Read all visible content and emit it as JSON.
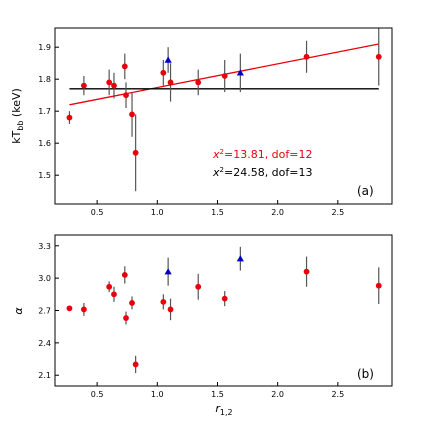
{
  "chart_data": [
    {
      "panel": "(a)",
      "type": "scatter",
      "ylabel": "kT_bb (keV)",
      "xlim": [
        0.15,
        2.95
      ],
      "ylim": [
        1.41,
        1.96
      ],
      "x_ticks": [
        0.5,
        1.0,
        1.5,
        2.0,
        2.5
      ],
      "y_ticks": [
        1.5,
        1.6,
        1.7,
        1.8,
        1.9
      ],
      "x_tick_labels": [
        "0.5",
        "1.0",
        "1.5",
        "2.0",
        "2.5"
      ],
      "y_tick_labels": [
        "1.5",
        "1.6",
        "1.7",
        "1.8",
        "1.9"
      ],
      "series": [
        {
          "marker": "circle",
          "color": "#e8000b",
          "points": [
            {
              "x": 0.27,
              "y": 1.68,
              "yerr": 0.02
            },
            {
              "x": 0.39,
              "y": 1.78,
              "yerr": 0.03
            },
            {
              "x": 0.6,
              "y": 1.79,
              "yerr": 0.04
            },
            {
              "x": 0.64,
              "y": 1.78,
              "yerr": 0.04
            },
            {
              "x": 0.73,
              "y": 1.84,
              "yerr": 0.04
            },
            {
              "x": 0.74,
              "y": 1.75,
              "yerr": 0.04
            },
            {
              "x": 0.79,
              "y": 1.69,
              "yerr": 0.07
            },
            {
              "x": 0.82,
              "y": 1.57,
              "yerr": 0.12
            },
            {
              "x": 1.05,
              "y": 1.82,
              "yerr": 0.04
            },
            {
              "x": 1.11,
              "y": 1.79,
              "yerr": 0.06
            },
            {
              "x": 1.34,
              "y": 1.79,
              "yerr": 0.04
            },
            {
              "x": 1.56,
              "y": 1.81,
              "yerr": 0.05
            },
            {
              "x": 2.24,
              "y": 1.87,
              "yerr": 0.05
            },
            {
              "x": 2.84,
              "y": 1.87,
              "yerr": 0.09
            }
          ]
        },
        {
          "marker": "triangle",
          "color": "#0000cc",
          "points": [
            {
              "x": 1.09,
              "y": 1.86,
              "yerr": 0.04
            },
            {
              "x": 1.69,
              "y": 1.82,
              "yerr": 0.06
            }
          ]
        }
      ],
      "lines": [
        {
          "color": "#e8000b",
          "x": [
            0.27,
            2.84
          ],
          "y": [
            1.72,
            1.91
          ]
        },
        {
          "color": "#000000",
          "x": [
            0.27,
            2.84
          ],
          "y": [
            1.77,
            1.77
          ]
        }
      ],
      "annotations": [
        {
          "text": "x²=13.81, dof=12",
          "color": "#e8000b"
        },
        {
          "text": "x²=24.58, dof=13",
          "color": "#000000"
        }
      ]
    },
    {
      "panel": "(b)",
      "type": "scatter",
      "xlabel": "r_1,2",
      "ylabel": "α",
      "xlim": [
        0.15,
        2.95
      ],
      "ylim": [
        2.0,
        3.4
      ],
      "x_ticks": [
        0.5,
        1.0,
        1.5,
        2.0,
        2.5
      ],
      "y_ticks": [
        2.1,
        2.4,
        2.7,
        3.0,
        3.3
      ],
      "x_tick_labels": [
        "0.5",
        "1.0",
        "1.5",
        "2.0",
        "2.5"
      ],
      "y_tick_labels": [
        "2.1",
        "2.4",
        "2.7",
        "3.0",
        "3.3"
      ],
      "series": [
        {
          "marker": "circle",
          "color": "#e8000b",
          "points": [
            {
              "x": 0.27,
              "y": 2.72,
              "yerr": 0.02
            },
            {
              "x": 0.39,
              "y": 2.71,
              "yerr": 0.06
            },
            {
              "x": 0.6,
              "y": 2.92,
              "yerr": 0.05
            },
            {
              "x": 0.64,
              "y": 2.85,
              "yerr": 0.07
            },
            {
              "x": 0.73,
              "y": 3.03,
              "yerr": 0.08
            },
            {
              "x": 0.74,
              "y": 2.63,
              "yerr": 0.06
            },
            {
              "x": 0.79,
              "y": 2.77,
              "yerr": 0.06
            },
            {
              "x": 0.82,
              "y": 2.2,
              "yerr": 0.08
            },
            {
              "x": 1.05,
              "y": 2.78,
              "yerr": 0.07
            },
            {
              "x": 1.11,
              "y": 2.71,
              "yerr": 0.1
            },
            {
              "x": 1.34,
              "y": 2.92,
              "yerr": 0.12
            },
            {
              "x": 1.56,
              "y": 2.81,
              "yerr": 0.07
            },
            {
              "x": 2.24,
              "y": 3.06,
              "yerr": 0.14
            },
            {
              "x": 2.84,
              "y": 2.93,
              "yerr": 0.17
            }
          ]
        },
        {
          "marker": "triangle",
          "color": "#0000cc",
          "points": [
            {
              "x": 1.09,
              "y": 3.06,
              "yerr": 0.13
            },
            {
              "x": 1.69,
              "y": 3.18,
              "yerr": 0.11
            }
          ]
        }
      ],
      "lines": [],
      "annotations": []
    }
  ],
  "labels": {
    "panel_a_tag": "(a)",
    "panel_b_tag": "(b)",
    "x_axis_main": "r",
    "x_axis_sub": "1,2",
    "a_ylabel_main": "kT",
    "a_ylabel_sub": "bb",
    "a_ylabel_unit": " (keV)",
    "b_ylabel": "α",
    "annot_red_x": "x",
    "annot_red_rest": "=13.81, dof=12",
    "annot_black_x": "x",
    "annot_black_rest": "=24.58, dof=13",
    "annot_sup": "2"
  }
}
